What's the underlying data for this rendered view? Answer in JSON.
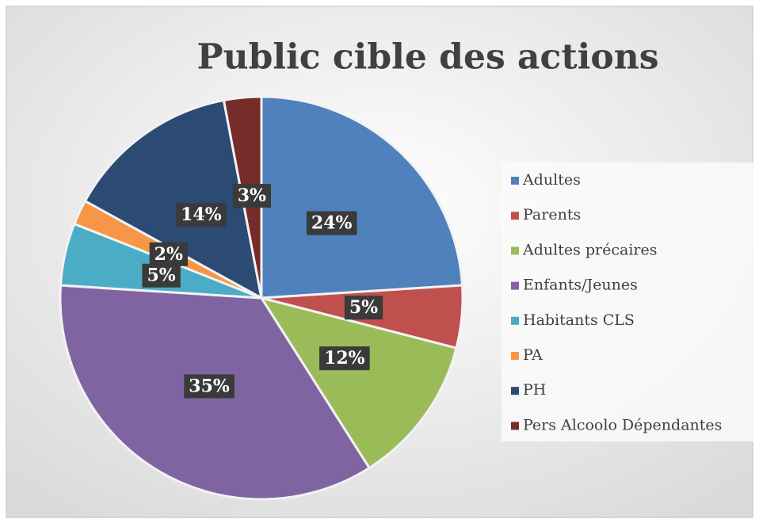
{
  "chart_data": {
    "type": "pie",
    "title": "Public cible des actions",
    "categories": [
      "Adultes",
      "Parents",
      "Adultes précaires",
      "Enfants/Jeunes",
      "Habitants CLS",
      "PA",
      "PH",
      "Pers Alcoolo Dépendantes"
    ],
    "values": [
      24,
      5,
      12,
      35,
      5,
      2,
      14,
      3
    ],
    "value_labels": [
      "24%",
      "5%",
      "12%",
      "35%",
      "5%",
      "2%",
      "14%",
      "3%"
    ],
    "colors": [
      "#4f81bd",
      "#c0504d",
      "#9bbb59",
      "#8064a2",
      "#4bacc6",
      "#f79646",
      "#2b4a74",
      "#772c2a"
    ],
    "legend": "right"
  }
}
